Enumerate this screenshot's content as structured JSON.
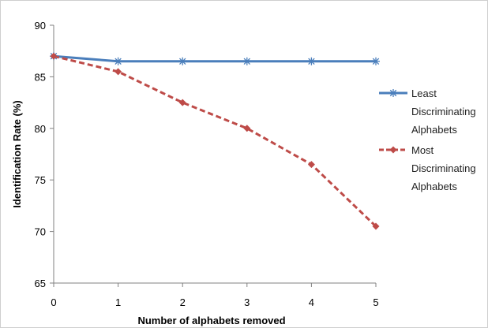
{
  "chart_data": {
    "type": "line",
    "x": [
      0,
      1,
      2,
      3,
      4,
      5
    ],
    "series": [
      {
        "name": "Least Discriminating Alphabets",
        "legend_lines": [
          "Least",
          "Discriminating",
          "Alphabets"
        ],
        "values": [
          87,
          86.5,
          86.5,
          86.5,
          86.5,
          86.5
        ],
        "color": "#4a7ebb",
        "line_style": "solid",
        "marker": "asterisk"
      },
      {
        "name": "Most Discriminating Alphabets",
        "legend_lines": [
          "Most",
          "Discriminating",
          "Alphabets"
        ],
        "values": [
          87,
          85.5,
          82.5,
          80,
          76.5,
          70.5
        ],
        "color": "#be4b48",
        "line_style": "dashed",
        "marker": "diamond"
      }
    ],
    "xlabel": "Number of alphabets removed",
    "ylabel": "Identification Rate (%)",
    "xlim": [
      0,
      5
    ],
    "ylim": [
      65,
      90
    ],
    "yticks": [
      65,
      70,
      75,
      80,
      85,
      90
    ],
    "grid": false,
    "legend_position": "right"
  }
}
